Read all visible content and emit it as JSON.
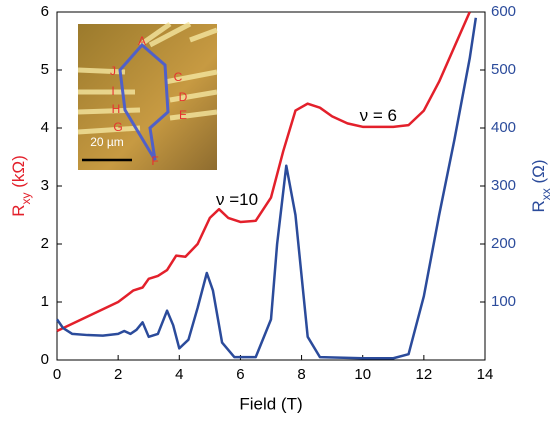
{
  "chart_data": {
    "type": "line",
    "x_label": "Field (T)",
    "y_label": [
      "R",
      "xy",
      " (kΩ)"
    ],
    "y2_label": [
      "R",
      "xx",
      " (Ω)"
    ],
    "xlim": [
      0,
      14
    ],
    "xticks": [
      0,
      2,
      4,
      6,
      8,
      10,
      12,
      14
    ],
    "ylim": [
      0,
      6
    ],
    "yticks": [
      0,
      1,
      2,
      3,
      4,
      5,
      6
    ],
    "y2lim": [
      0,
      600
    ],
    "y2ticks": [
      100,
      200,
      300,
      400,
      500,
      600
    ],
    "series": [
      {
        "color": "#e3202b",
        "axis": "y",
        "x": [
          0,
          1,
          2,
          2.5,
          2.8,
          3,
          3.3,
          3.6,
          3.9,
          4.2,
          4.6,
          5,
          5.3,
          5.6,
          6,
          6.5,
          7,
          7.4,
          7.8,
          8.2,
          8.6,
          9,
          9.5,
          10,
          11,
          11.5,
          12,
          12.5,
          13,
          13.5
        ],
        "values": [
          0.5,
          0.75,
          1.0,
          1.2,
          1.25,
          1.4,
          1.45,
          1.55,
          1.8,
          1.78,
          2.0,
          2.45,
          2.6,
          2.45,
          2.38,
          2.4,
          2.8,
          3.6,
          4.3,
          4.42,
          4.35,
          4.2,
          4.08,
          4.02,
          4.02,
          4.05,
          4.3,
          4.8,
          5.4,
          6.0
        ]
      },
      {
        "color": "#2b4b9b",
        "axis": "y2",
        "x": [
          0,
          0.2,
          0.5,
          1,
          1.5,
          2,
          2.2,
          2.4,
          2.6,
          2.8,
          3,
          3.3,
          3.6,
          3.8,
          4,
          4.3,
          4.6,
          4.9,
          5.1,
          5.4,
          5.8,
          6.5,
          7,
          7.2,
          7.5,
          7.8,
          8.2,
          8.6,
          10,
          11,
          11.5,
          12,
          12.5,
          13,
          13.5,
          13.7
        ],
        "values": [
          70,
          55,
          45,
          43,
          42,
          45,
          50,
          45,
          52,
          65,
          40,
          45,
          85,
          60,
          20,
          35,
          90,
          150,
          120,
          30,
          5,
          5,
          70,
          200,
          335,
          250,
          40,
          5,
          3,
          3,
          10,
          110,
          250,
          380,
          520,
          590
        ]
      }
    ],
    "annotations": [
      {
        "text": "ν =10",
        "x": 5.2,
        "y": 2.75
      },
      {
        "text": "ν = 6",
        "x": 9.9,
        "y": 4.2
      }
    ],
    "inset": {
      "labels": [
        "A",
        "J",
        "I",
        "H",
        "G",
        "C",
        "D",
        "E",
        "F"
      ],
      "scale_bar": "20 µm"
    }
  }
}
